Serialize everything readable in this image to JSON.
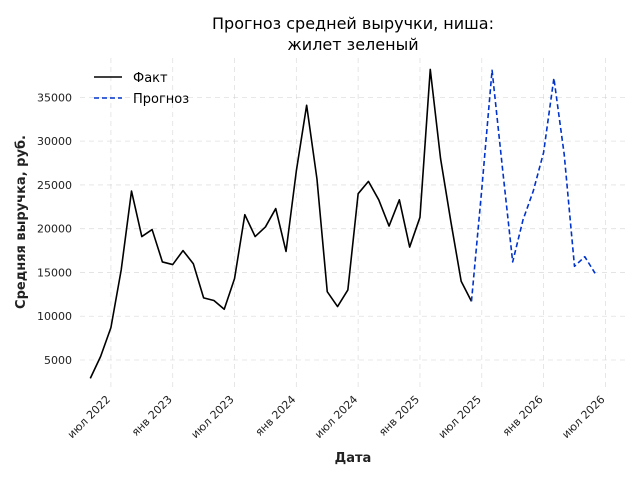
{
  "chart_data": {
    "type": "line",
    "title": "Прогноз средней выручки, ниша:\nжилет зеленый",
    "xlabel": "Дата",
    "ylabel": "Средняя выручка, руб.",
    "grid": true,
    "legend_position": "top-left",
    "x_axis": {
      "range": [
        "2022-04",
        "2026-09"
      ],
      "ticks": [
        {
          "date": "2022-07",
          "label": "июл 2022"
        },
        {
          "date": "2023-01",
          "label": "янв 2023"
        },
        {
          "date": "2023-07",
          "label": "июл 2023"
        },
        {
          "date": "2024-01",
          "label": "янв 2024"
        },
        {
          "date": "2024-07",
          "label": "июл 2024"
        },
        {
          "date": "2025-01",
          "label": "янв 2025"
        },
        {
          "date": "2025-07",
          "label": "июл 2025"
        },
        {
          "date": "2026-01",
          "label": "янв 2026"
        },
        {
          "date": "2026-07",
          "label": "июл 2026"
        }
      ]
    },
    "y_axis": {
      "range": [
        1800,
        39500
      ],
      "ticks": [
        5000,
        10000,
        15000,
        20000,
        25000,
        30000,
        35000
      ]
    },
    "series": [
      {
        "name": "Факт",
        "color": "#000000",
        "dash": "solid",
        "points": [
          [
            "2022-05",
            2900
          ],
          [
            "2022-06",
            5400
          ],
          [
            "2022-07",
            8700
          ],
          [
            "2022-08",
            15300
          ],
          [
            "2022-09",
            24300
          ],
          [
            "2022-10",
            19100
          ],
          [
            "2022-11",
            19900
          ],
          [
            "2022-12",
            16200
          ],
          [
            "2023-01",
            15900
          ],
          [
            "2023-02",
            17500
          ],
          [
            "2023-03",
            16000
          ],
          [
            "2023-04",
            12100
          ],
          [
            "2023-05",
            11800
          ],
          [
            "2023-06",
            10800
          ],
          [
            "2023-07",
            14300
          ],
          [
            "2023-08",
            21600
          ],
          [
            "2023-09",
            19100
          ],
          [
            "2023-10",
            20200
          ],
          [
            "2023-11",
            22300
          ],
          [
            "2023-12",
            17400
          ],
          [
            "2024-01",
            26600
          ],
          [
            "2024-02",
            34100
          ],
          [
            "2024-03",
            25700
          ],
          [
            "2024-04",
            12800
          ],
          [
            "2024-05",
            11100
          ],
          [
            "2024-06",
            13000
          ],
          [
            "2024-07",
            24000
          ],
          [
            "2024-08",
            25400
          ],
          [
            "2024-09",
            23300
          ],
          [
            "2024-10",
            20300
          ],
          [
            "2024-11",
            23300
          ],
          [
            "2024-12",
            17900
          ],
          [
            "2025-01",
            21300
          ],
          [
            "2025-02",
            38200
          ],
          [
            "2025-03",
            28000
          ],
          [
            "2025-04",
            20800
          ],
          [
            "2025-05",
            14000
          ],
          [
            "2025-06",
            11700
          ]
        ]
      },
      {
        "name": "Прогноз",
        "color": "#0033cc",
        "dash": "dashed",
        "points": [
          [
            "2025-06",
            11700
          ],
          [
            "2025-07",
            24500
          ],
          [
            "2025-08",
            38100
          ],
          [
            "2025-09",
            27000
          ],
          [
            "2025-10",
            16200
          ],
          [
            "2025-11",
            21000
          ],
          [
            "2025-12",
            24300
          ],
          [
            "2026-01",
            28700
          ],
          [
            "2026-02",
            37200
          ],
          [
            "2026-03",
            28500
          ],
          [
            "2026-04",
            15700
          ],
          [
            "2026-05",
            16800
          ],
          [
            "2026-06",
            14900
          ]
        ]
      }
    ]
  }
}
